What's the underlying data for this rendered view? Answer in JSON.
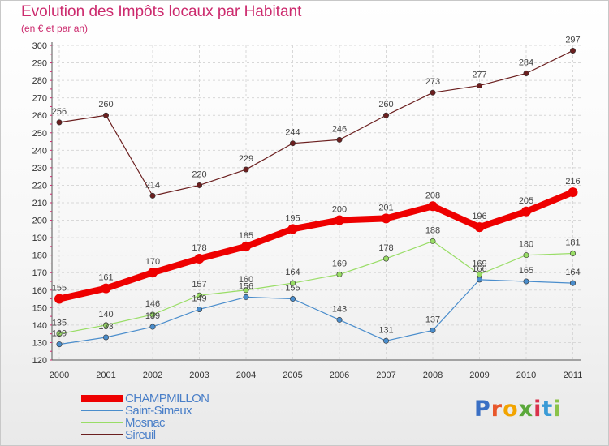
{
  "title": "Evolution des Impôts locaux par Habitant",
  "subtitle": "(en € et par an)",
  "logo": {
    "text": "Proxiti",
    "letter_colors": [
      "#3a6fc4",
      "#e8572b",
      "#f2a400",
      "#5aa83a",
      "#d9324b",
      "#3a9bd6",
      "#8bc34a"
    ]
  },
  "chart_data": {
    "type": "line",
    "title": "Evolution des Impôts locaux par Habitant",
    "subtitle": "(en € et par an)",
    "xlabel": "",
    "ylabel": "",
    "x": [
      "2000",
      "2001",
      "2002",
      "2003",
      "2004",
      "2005",
      "2006",
      "2007",
      "2008",
      "2009",
      "2010",
      "2011"
    ],
    "ylim": [
      120,
      300
    ],
    "yticks": [
      120,
      130,
      140,
      150,
      160,
      170,
      180,
      190,
      200,
      210,
      220,
      230,
      240,
      250,
      260,
      270,
      280,
      290,
      300
    ],
    "grid": true,
    "legend_position": "bottom-left",
    "series": [
      {
        "name": "CHAMPMILLON",
        "color": "#ee0000",
        "values": [
          155,
          161,
          170,
          178,
          185,
          195,
          200,
          201,
          208,
          196,
          205,
          216
        ]
      },
      {
        "name": "Saint-Simeux",
        "color": "#4a8dcc",
        "values": [
          129,
          133,
          139,
          149,
          156,
          155,
          143,
          131,
          137,
          166,
          165,
          164
        ]
      },
      {
        "name": "Mosnac",
        "color": "#99dd66",
        "values": [
          135,
          140,
          146,
          157,
          160,
          164,
          169,
          178,
          188,
          169,
          180,
          181
        ]
      },
      {
        "name": "Sireuil",
        "color": "#6b1f1f",
        "values": [
          256,
          260,
          214,
          220,
          229,
          244,
          246,
          260,
          273,
          277,
          284,
          297
        ]
      }
    ],
    "data_labels": [
      [
        "155",
        "161",
        "170",
        "178",
        "185",
        "195",
        "200",
        "201",
        "208",
        "196",
        "205",
        "216"
      ],
      [
        "129",
        "133",
        "139",
        "149",
        "156",
        "155",
        "143",
        "131",
        "137",
        "166",
        "165",
        "164"
      ],
      [
        "135",
        "140",
        "146",
        "157",
        "160",
        "164",
        "169",
        "178",
        "188",
        "169",
        "180",
        "181"
      ],
      [
        "256",
        "260",
        "214",
        "220",
        "229",
        "244",
        "246",
        "260",
        "273",
        "277",
        "284",
        "297"
      ]
    ]
  }
}
